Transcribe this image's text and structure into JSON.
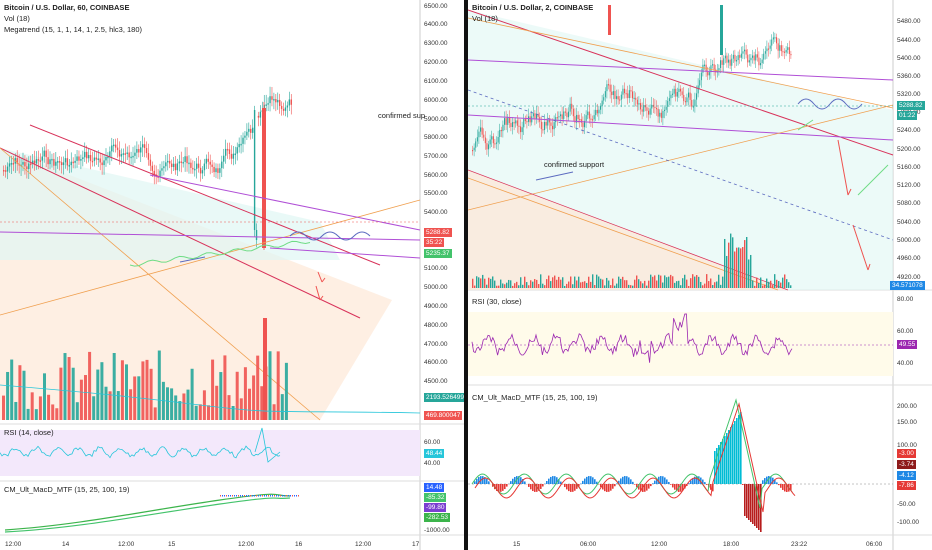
{
  "left": {
    "title": "Bitcoin / U.S. Dollar, 60, COINBASE",
    "vol": "Vol (18)",
    "megatrend": "Megatrend (15, 1, 1, 14, 1, 2.5, hlc3, 180)",
    "price_ticks": [
      "6500.00",
      "6400.00",
      "6300.00",
      "6200.00",
      "6100.00",
      "6000.00",
      "5900.00",
      "5800.00",
      "5700.00",
      "5600.00",
      "5500.00",
      "5400.00",
      "5300.00",
      "5100.00",
      "5000.00",
      "4900.00",
      "4800.00",
      "4700.00",
      "4600.00",
      "4500.00"
    ],
    "price_tag": "5288.82",
    "countdown": "35:22",
    "green_tag": "5235.37",
    "vol_tag1": "2193.526499",
    "vol_tag2": "469.800047",
    "annotation": "confirmed sup",
    "rsi_label": "RSI (14, close)",
    "rsi_ticks": [
      "60.00",
      "40.00"
    ],
    "rsi_tag": "48.44",
    "macd_label": "CM_Ult_MacD_MTF (15, 25, 100, 19)",
    "macd_tags": [
      "14.48",
      "-85.32",
      "-99.80",
      "-282.53"
    ],
    "macd_tick": "-1000.00",
    "x_ticks": [
      "12:00",
      "14",
      "12:00",
      "15",
      "12:00",
      "16",
      "12:00",
      "17"
    ]
  },
  "right": {
    "title": "Bitcoin / U.S. Dollar, 2, COINBASE",
    "vol": "Vol (18)",
    "price_ticks": [
      "5480.00",
      "5440.00",
      "5400.00",
      "5360.00",
      "5320.00",
      "5280.00",
      "5240.00",
      "5200.00",
      "5160.00",
      "5120.00",
      "5080.00",
      "5040.00",
      "5000.00",
      "4960.00",
      "4920.00"
    ],
    "price_tag": "5288.82",
    "countdown": "01:22",
    "vol_tag": "34.571078",
    "annotation": "confirmed support",
    "rsi_label": "RSI (30, close)",
    "rsi_ticks": [
      "80.00",
      "60.00",
      "40.00"
    ],
    "rsi_tag": "49.55",
    "macd_label": "CM_Ult_MacD_MTF (15, 25, 100, 19)",
    "macd_ticks": [
      "200.00",
      "150.00",
      "100.00",
      "50.00",
      "-50.00",
      "-100.00"
    ],
    "macd_tags": [
      "-3.00",
      "-3.74",
      "-4.12",
      "-7.86"
    ],
    "x_ticks": [
      "15",
      "06:00",
      "12:00",
      "18:00",
      "23:22",
      "06:00"
    ]
  },
  "colors": {
    "up": "#26a69a",
    "down": "#ef5350",
    "rsi_left": "#26c6da",
    "rsi_right": "#9c27b0",
    "trend_purple": "#b04fd6",
    "trend_orange": "#f0a050",
    "trend_red": "#d8325a",
    "fill_orange": "#fde9d9",
    "fill_cyan": "#e0f7f4"
  }
}
